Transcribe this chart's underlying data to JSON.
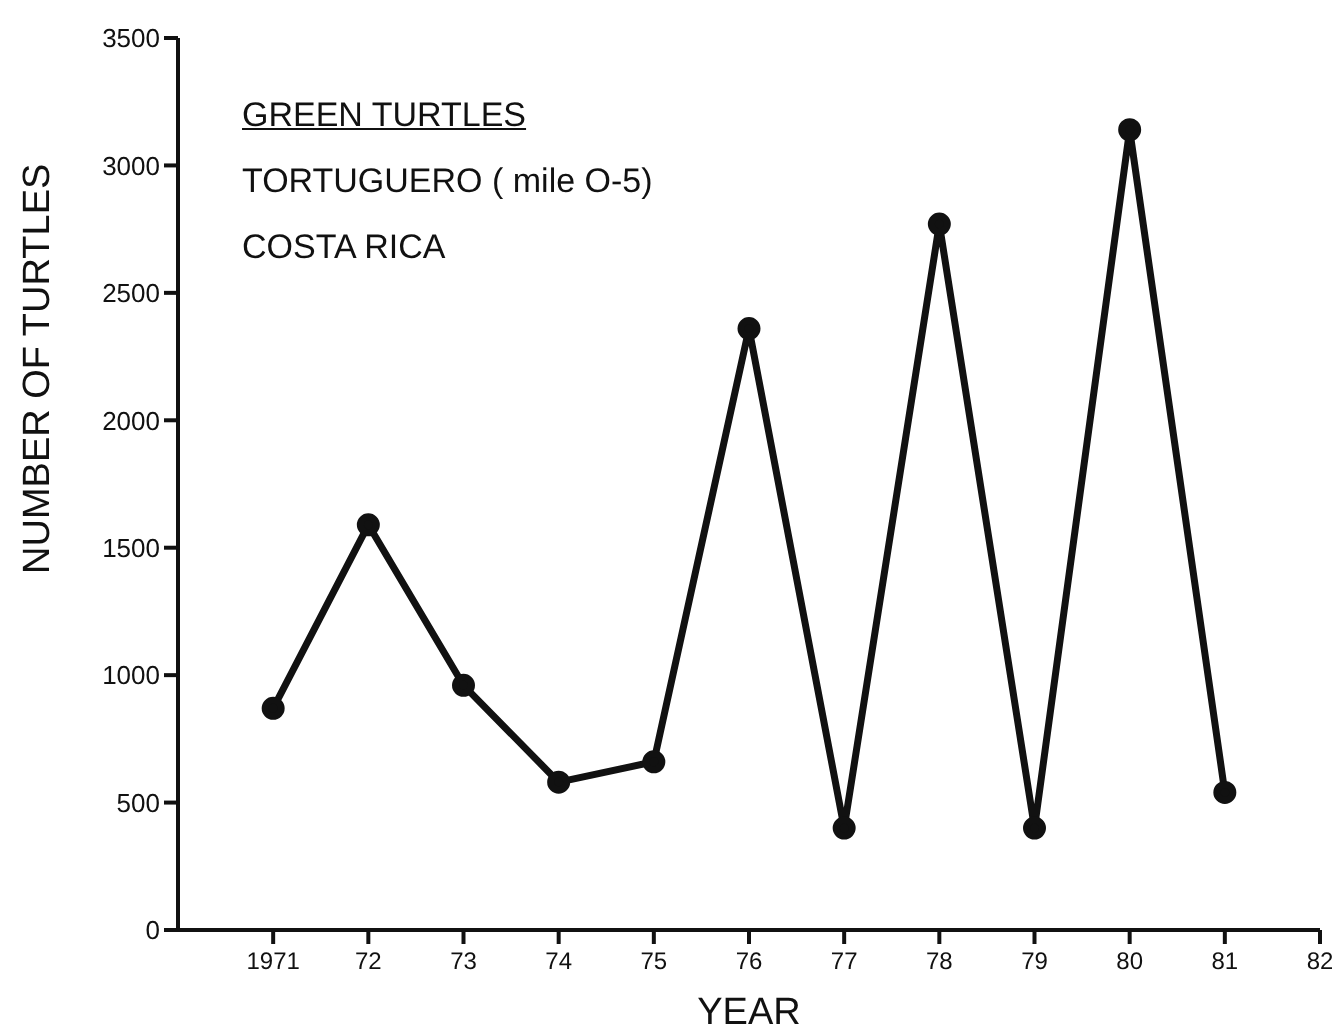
{
  "chart_data": {
    "type": "line",
    "title": "GREEN TURTLES",
    "subtitle": "TORTUGUERO ( mile O-5)",
    "annotations": [
      "COSTA RICA"
    ],
    "xlabel": "YEAR",
    "ylabel": "NUMBER OF TURTLES",
    "x": [
      1971,
      1972,
      1973,
      1974,
      1975,
      1976,
      1977,
      1978,
      1979,
      1980,
      1981
    ],
    "series": [
      {
        "color": "#111111",
        "values": [
          870,
          1590,
          960,
          580,
          660,
          2360,
          400,
          2770,
          400,
          3140,
          540
        ]
      }
    ],
    "xlim": [
      1970,
      1982
    ],
    "xticks": [
      {
        "value": 1971,
        "label": "1971"
      },
      {
        "value": 1972,
        "label": "72"
      },
      {
        "value": 1973,
        "label": "73"
      },
      {
        "value": 1974,
        "label": "74"
      },
      {
        "value": 1975,
        "label": "75"
      },
      {
        "value": 1976,
        "label": "76"
      },
      {
        "value": 1977,
        "label": "77"
      },
      {
        "value": 1978,
        "label": "78"
      },
      {
        "value": 1979,
        "label": "79"
      },
      {
        "value": 1980,
        "label": "80"
      },
      {
        "value": 1981,
        "label": "81"
      },
      {
        "value": 1982,
        "label": "82"
      }
    ],
    "ylim": [
      0,
      3500
    ],
    "yticks": [
      0,
      500,
      1000,
      1500,
      2000,
      2500,
      3000,
      3500
    ],
    "grid": false,
    "legend": false,
    "marker": "circle",
    "line_style": "solid"
  }
}
